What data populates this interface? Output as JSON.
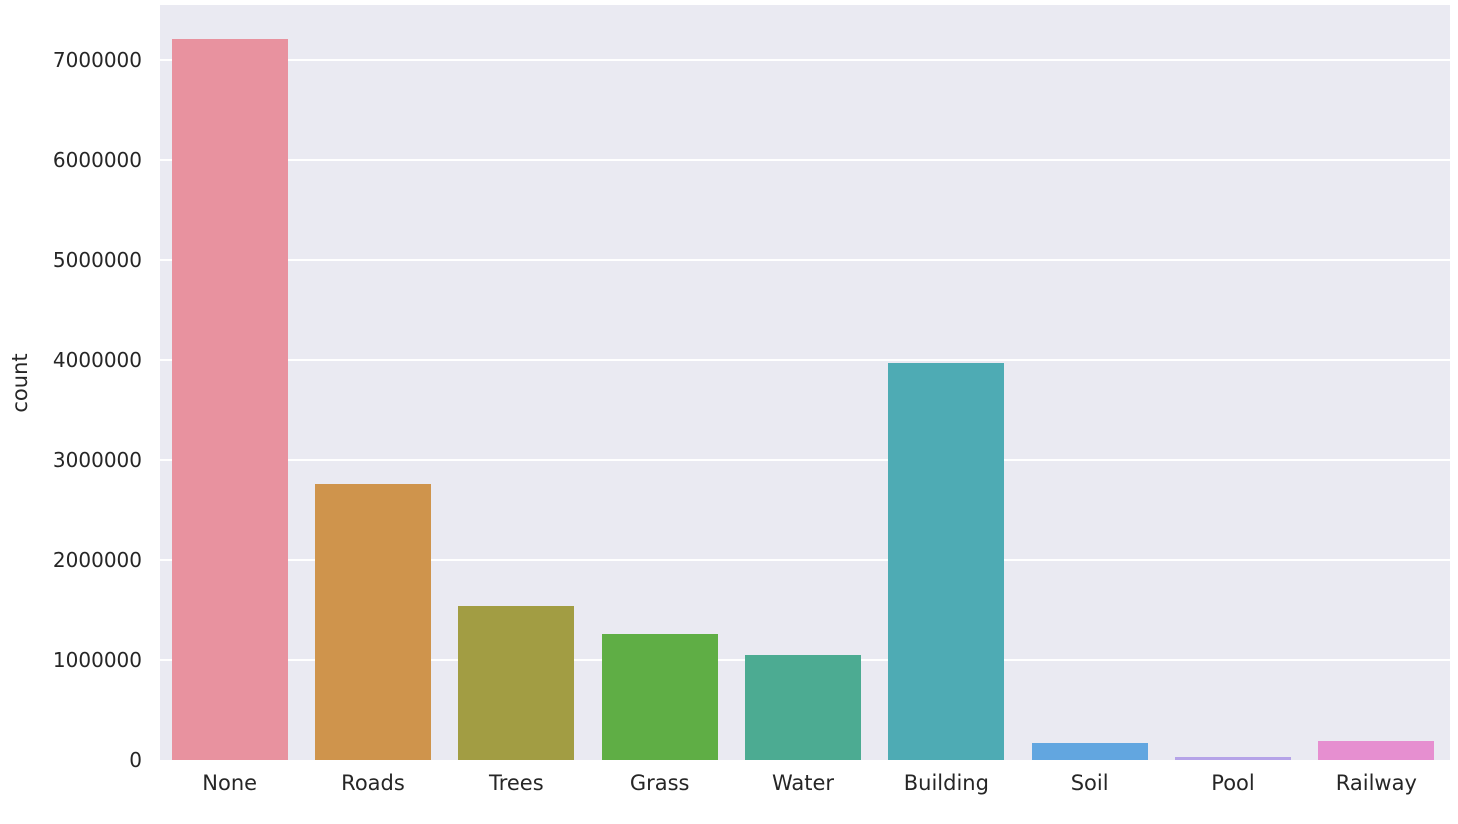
{
  "chart_data": {
    "type": "bar",
    "title": "",
    "xlabel": "",
    "ylabel": "count",
    "ylim": [
      0,
      7550000
    ],
    "grid": true,
    "legend": null,
    "categories": [
      "None",
      "Roads",
      "Trees",
      "Grass",
      "Water",
      "Building",
      "Soil",
      "Pool",
      "Railway"
    ],
    "values": [
      7210000,
      2760000,
      1540000,
      1260000,
      1050000,
      3970000,
      170000,
      30000,
      190000
    ],
    "colors": [
      "#e8929f",
      "#cf944c",
      "#a29d43",
      "#5fae45",
      "#4cab92",
      "#4eabb4",
      "#62a6e0",
      "#b5a3e8",
      "#e68fd0"
    ],
    "yticks": [
      0,
      1000000,
      2000000,
      3000000,
      4000000,
      5000000,
      6000000,
      7000000
    ],
    "ytick_labels": [
      "0",
      "1000000",
      "2000000",
      "3000000",
      "4000000",
      "5000000",
      "6000000",
      "7000000"
    ]
  },
  "style": {
    "plot_background": "#eaeaf2",
    "grid_color": "#ffffff",
    "text_color": "#262626"
  }
}
